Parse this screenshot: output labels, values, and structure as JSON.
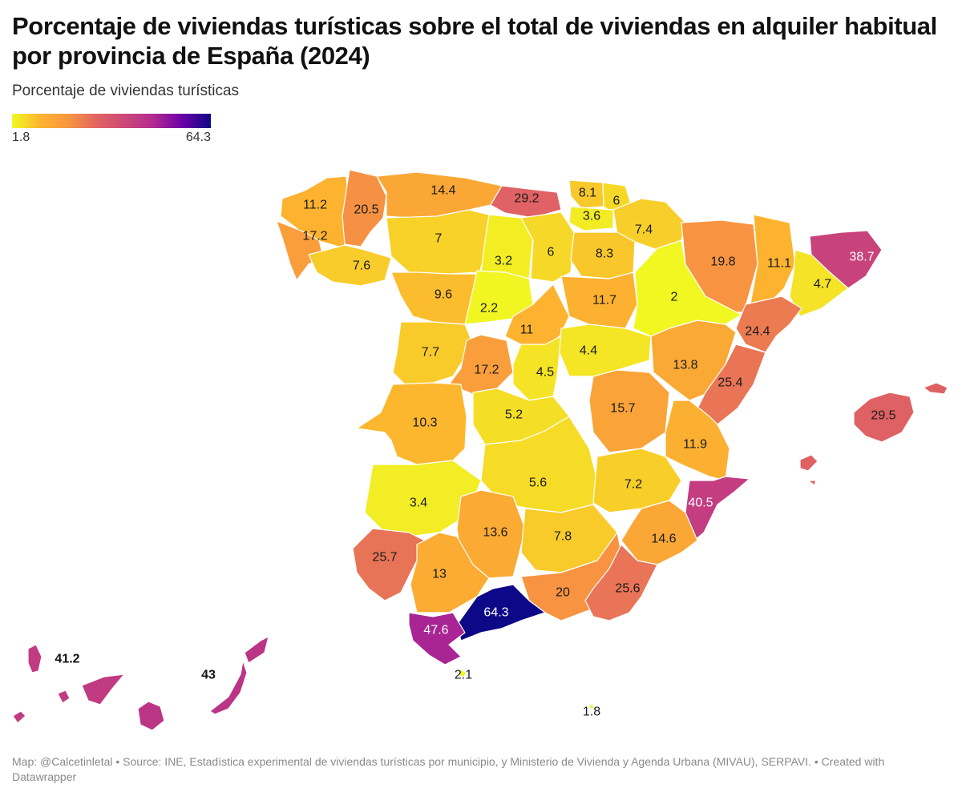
{
  "title": "Porcentaje de viviendas turísticas sobre el total de viviendas en alquiler habitual por provincia de España (2024)",
  "legend": {
    "title": "Porcentaje de viviendas turísticas",
    "min": "1.8",
    "max": "64.3",
    "colors": [
      "#f0f921",
      "#fdb42f",
      "#f89540",
      "#e16462",
      "#cc4778",
      "#b12a90",
      "#6a00a8",
      "#0d0887"
    ]
  },
  "footer": "Map: @Calcetinletal • Source: INE, Estadística experimental de viviendas turísticas por municipio, y Ministerio de Vivienda y Agenda Urbana (MIVAU), SERPAVI. • Created with Datawrapper",
  "map_data": {
    "type": "choropleth",
    "metric": "Porcentaje de viviendas turísticas",
    "scale_min": 1.8,
    "scale_max": 64.3,
    "values": [
      "11.2",
      "20.5",
      "14.4",
      "29.2",
      "8.1",
      "6",
      "3.6",
      "7.4",
      "17.2",
      "7",
      "7.6",
      "3.2",
      "6",
      "8.3",
      "19.8",
      "11.1",
      "38.7",
      "4.7",
      "9.6",
      "2.2",
      "11.7",
      "2",
      "11",
      "24.4",
      "7.7",
      "17.2",
      "4.5",
      "4.4",
      "13.8",
      "25.4",
      "10.3",
      "5.2",
      "15.7",
      "29.5",
      "11.9",
      "5.6",
      "7.2",
      "3.4",
      "40.5",
      "13.6",
      "7.8",
      "14.6",
      "25.7",
      "13",
      "20",
      "25.6",
      "64.3",
      "47.6",
      "2.1",
      "1.8",
      "41.2",
      "43"
    ]
  }
}
